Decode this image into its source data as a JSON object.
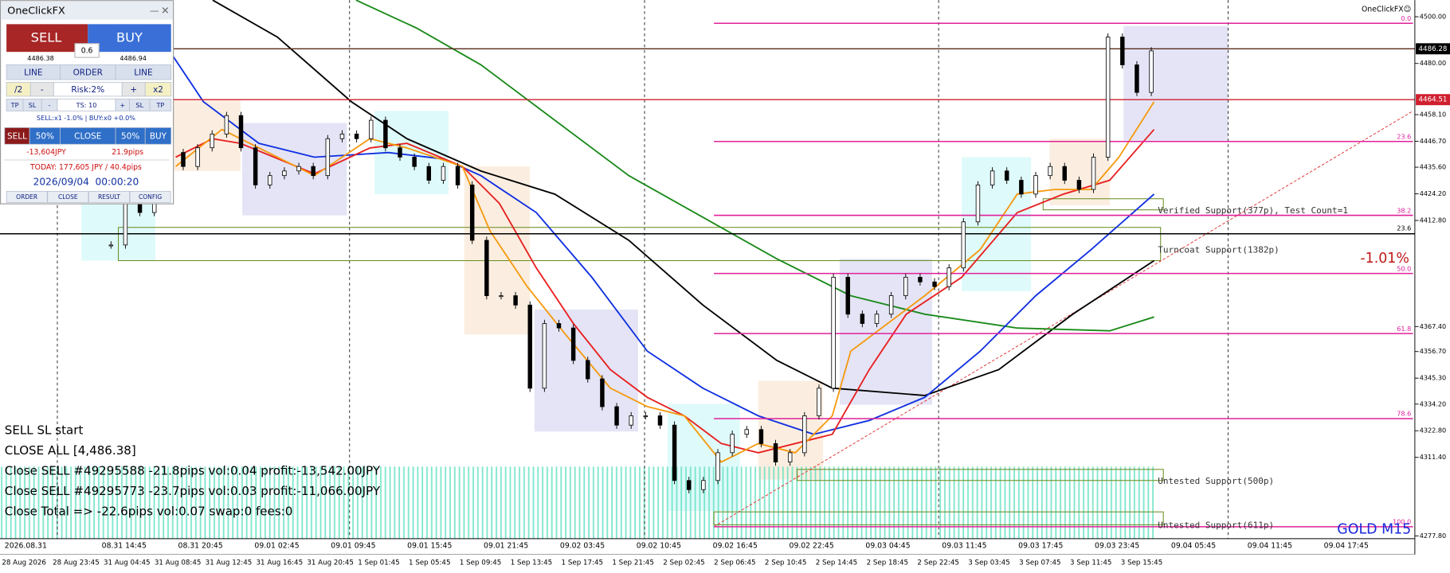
{
  "chart": {
    "symbol": "GOLD M15",
    "brand": "OneClickFX☺",
    "change": "-1.01%",
    "ylim": [
      4276.6,
      4507.1
    ],
    "yticks": [
      {
        "value": 4500,
        "label": "4500.00"
      },
      {
        "value": 4480,
        "label": "4480.00"
      },
      {
        "value": 4458.1,
        "label": "4458.10"
      },
      {
        "value": 4446.7,
        "label": "4446.70"
      },
      {
        "value": 4435.6,
        "label": "4435.60"
      },
      {
        "value": 4424.2,
        "label": "4424.20"
      },
      {
        "value": 4412.8,
        "label": "4412.80"
      },
      {
        "value": 4367.4,
        "label": "4367.40"
      },
      {
        "value": 4356.7,
        "label": "4356.70"
      },
      {
        "value": 4345.3,
        "label": "4345.30"
      },
      {
        "value": 4334.2,
        "label": "4334.20"
      },
      {
        "value": 4322.8,
        "label": "4322.80"
      },
      {
        "value": 4311.4,
        "label": "4311.40"
      },
      {
        "value": 4277.8,
        "label": "4277.80"
      }
    ],
    "price_lines": [
      {
        "value": 4486.28,
        "label": "4486.28",
        "color": "#5a2a1a",
        "box": "#000000"
      },
      {
        "value": 4464.51,
        "label": "4464.51",
        "color": "#d02030",
        "box": "#d02030"
      }
    ],
    "hline": {
      "value": 4407.1,
      "label": "23.6",
      "color": "#000000"
    },
    "fib": [
      {
        "label": "0.0",
        "value": 4497.2
      },
      {
        "label": "23.6",
        "value": 4446.6
      },
      {
        "label": "38.2",
        "value": 4415.0
      },
      {
        "label": "50.0",
        "value": 4390.1
      },
      {
        "label": "61.8",
        "value": 4364.4
      },
      {
        "label": "78.6",
        "value": 4328.0
      },
      {
        "label": "100.0",
        "value": 4281.7
      }
    ],
    "fib_color": "#e0209a",
    "supports": [
      "Verified Support(377p), Test Count=1",
      "Turncoat Support(1382p)",
      "Untested Support(500p)",
      "Untested Support(611p)"
    ],
    "closes": [
      4402.3,
      4422.1,
      4416.2,
      4439.9,
      4441.9,
      4435.9,
      4443.9,
      4449.8,
      4457.7,
      4443.9,
      4428.0,
      4432.0,
      4434.0,
      4435.9,
      4432.0,
      4447.8,
      4449.8,
      4447.8,
      4455.7,
      4443.9,
      4439.9,
      4435.9,
      4430.0,
      4435.9,
      4428.0,
      4404.3,
      4380.6,
      4380.6,
      4376.6,
      4341.0,
      4368.7,
      4366.8,
      4352.9,
      4345.0,
      4333.1,
      4325.2,
      4329.2,
      4329.2,
      4325.2,
      4301.5,
      4297.6,
      4301.5,
      4313.4,
      4321.3,
      4323.3,
      4317.3,
      4309.4,
      4313.4,
      4329.2,
      4341.0,
      4388.5,
      4372.7,
      4368.7,
      4372.7,
      4380.6,
      4388.5,
      4386.5,
      4384.5,
      4392.5,
      4412.2,
      4428.0,
      4434.0,
      4430.0,
      4424.1,
      4432.0,
      4435.9,
      4430.0,
      4426.1,
      4439.9,
      4491.3,
      4479.4,
      4467.6,
      4485.4
    ],
    "time_server": [
      "2026.08.31",
      "08.31 14:45",
      "08.31 20:45",
      "09.01 02:45",
      "09.01 09:45",
      "09.01 15:45",
      "09.01 21:45",
      "09.02 03:45",
      "09.02 10:45",
      "09.02 16:45",
      "09.02 22:45",
      "09.03 04:45",
      "09.03 11:45",
      "09.03 17:45",
      "09.03 23:45",
      "09.04 05:45",
      "09.04 11:45",
      "09.04 17:45"
    ],
    "time_local": [
      "28 Aug 2026",
      "28 Aug 23:45",
      "31 Aug 04:45",
      "31 Aug 08:45",
      "31 Aug 12:45",
      "31 Aug 16:45",
      "31 Aug 20:45",
      "1 Sep 01:45",
      "1 Sep 05:45",
      "1 Sep 09:45",
      "1 Sep 13:45",
      "1 Sep 17:45",
      "1 Sep 21:45",
      "2 Sep 02:45",
      "2 Sep 06:45",
      "2 Sep 10:45",
      "2 Sep 14:45",
      "2 Sep 18:45",
      "2 Sep 22:45",
      "3 Sep 03:45",
      "3 Sep 07:45",
      "3 Sep 11:45",
      "3 Sep 15:45"
    ]
  },
  "log": [
    "SELL SL start",
    "CLOSE ALL [4,486.38]",
    "Close SELL #49295588 -21.8pips vol:0.04 profit:-13,542.00JPY",
    "Close SELL #49295773 -23.7pips vol:0.03 profit:-11,066.00JPY",
    "Close Total => -22.6pips vol:0.07 swap:0 fees:0"
  ],
  "panel": {
    "title": "OneClickFX",
    "sell": "SELL",
    "buy": "BUY",
    "lot": "0.6",
    "bid": "4486.38",
    "ask": "4486.94",
    "row1": [
      "LINE",
      "ORDER",
      "LINE"
    ],
    "row2": [
      "/2",
      "-",
      "Risk:2%",
      "+",
      "x2"
    ],
    "row3": [
      "TP",
      "SL",
      "-",
      "TS: 10",
      "+",
      "SL",
      "TP"
    ],
    "status": "SELL:x1 -1.0% | BUY:x0 +0.0%",
    "row4": [
      "SELL",
      "50%",
      "CLOSE",
      "50%",
      "BUY"
    ],
    "pl": "-13,604JPY",
    "pips": "21.9pips",
    "today": "TODAY: 177,605 JPY / 40.4pips",
    "clock": "2026/09/04  00:00:20",
    "tabs": [
      "ORDER",
      "CLOSE",
      "RESULT",
      "CONFIG"
    ]
  }
}
